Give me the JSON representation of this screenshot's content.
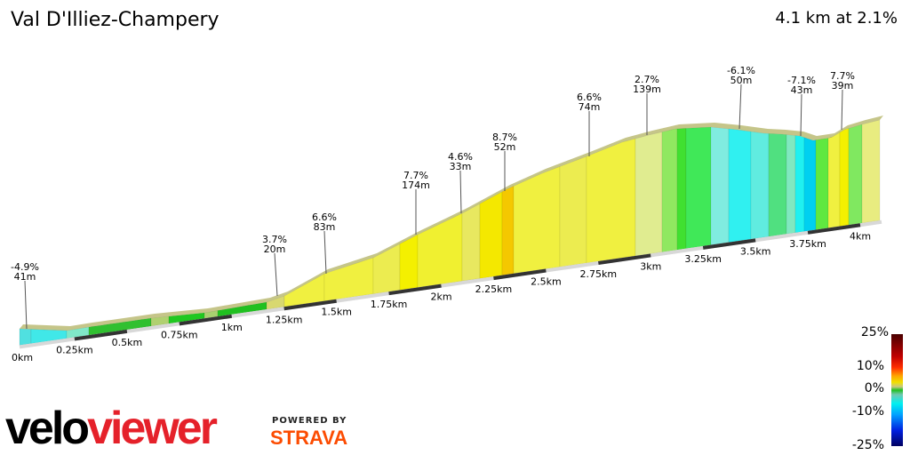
{
  "header": {
    "title": "Val D'Illiez-Champery",
    "summary": "4.1 km at 2.1%"
  },
  "chart_data": {
    "type": "area",
    "title": "Val D'Illiez-Champery",
    "x_unit": "km",
    "xlim": [
      0,
      4.1
    ],
    "x_ticks": [
      "0km",
      "0.25km",
      "0.5km",
      "0.75km",
      "1km",
      "1.25km",
      "1.5km",
      "1.75km",
      "2km",
      "2.25km",
      "2.5km",
      "2.75km",
      "3km",
      "3.25km",
      "3.5km",
      "3.75km",
      "4km"
    ],
    "segment_annotations": [
      {
        "gradient": "-4.9%",
        "length": "41m"
      },
      {
        "gradient": "3.7%",
        "length": "20m"
      },
      {
        "gradient": "6.6%",
        "length": "83m"
      },
      {
        "gradient": "7.7%",
        "length": "174m"
      },
      {
        "gradient": "4.6%",
        "length": "33m"
      },
      {
        "gradient": "8.7%",
        "length": "52m"
      },
      {
        "gradient": "6.6%",
        "length": "74m"
      },
      {
        "gradient": "2.7%",
        "length": "139m"
      },
      {
        "gradient": "-6.1%",
        "length": "50m"
      },
      {
        "gradient": "-7.1%",
        "length": "43m"
      },
      {
        "gradient": "7.7%",
        "length": "39m"
      }
    ],
    "color_scale": {
      "labels": [
        "25%",
        "10%",
        "0%",
        "-10%",
        "-25%"
      ]
    }
  },
  "branding": {
    "logo_part1": "velo",
    "logo_part2": "viewer",
    "powered_by": "POWERED BY",
    "strava": "STRAVA"
  }
}
